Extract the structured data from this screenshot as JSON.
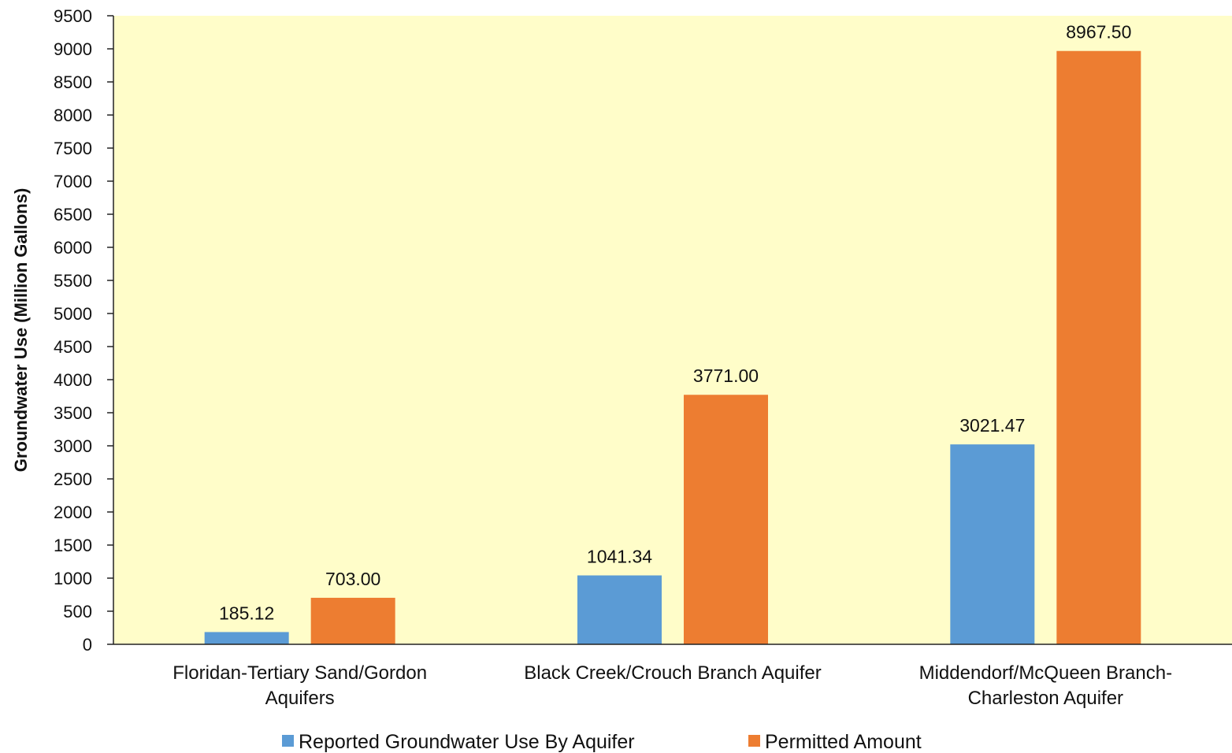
{
  "chart_data": {
    "type": "bar",
    "title": "",
    "xlabel": "",
    "ylabel": "Groundwater Use (Million Gallons)",
    "ylim": [
      0,
      9500
    ],
    "ytick_step": 500,
    "grid": false,
    "legend_position": "bottom",
    "plot_background": "#FFFDC9",
    "categories": [
      [
        "Floridan-Tertiary Sand/Gordon",
        "Aquifers"
      ],
      [
        "Black Creek/Crouch Branch Aquifer"
      ],
      [
        "Middendorf/McQueen Branch-",
        "Charleston Aquifer"
      ]
    ],
    "series": [
      {
        "name": "Reported Groundwater Use By Aquifer",
        "color": "#5B9BD5",
        "values": [
          185.12,
          1041.34,
          3021.47
        ],
        "labels": [
          "185.12",
          "1041.34",
          "3021.47"
        ]
      },
      {
        "name": "Permitted Amount",
        "color": "#ED7D31",
        "values": [
          703.0,
          3771.0,
          8967.5
        ],
        "labels": [
          "703.00",
          "3771.00",
          "8967.50"
        ]
      }
    ]
  }
}
